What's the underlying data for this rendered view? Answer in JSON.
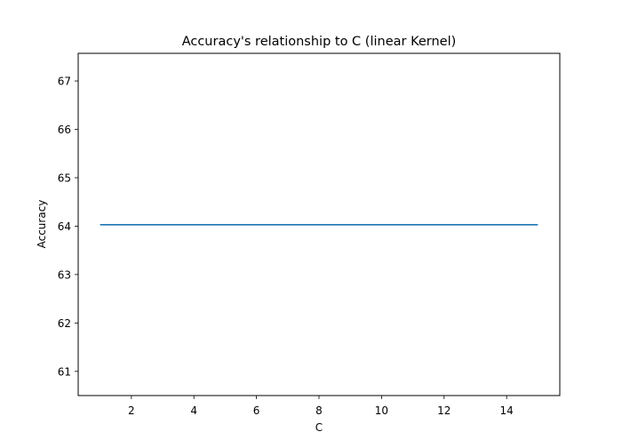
{
  "chart_data": {
    "type": "line",
    "title": "Accuracy's relationship to C (linear Kernel)",
    "xlabel": "C",
    "ylabel": "Accuracy",
    "x": [
      1,
      2,
      3,
      4,
      5,
      6,
      7,
      8,
      9,
      10,
      11,
      12,
      13,
      14,
      15
    ],
    "series": [
      {
        "values": [
          64.03,
          64.03,
          64.03,
          64.03,
          64.03,
          64.03,
          64.03,
          64.03,
          64.03,
          64.03,
          64.03,
          64.03,
          64.03,
          64.03,
          64.03
        ],
        "color": "#1f77b4"
      }
    ],
    "xlim": [
      0.3,
      15.7
    ],
    "ylim": [
      60.5,
      67.57
    ],
    "xticks": [
      2,
      4,
      6,
      8,
      10,
      12,
      14
    ],
    "yticks": [
      61,
      62,
      63,
      64,
      65,
      66,
      67
    ],
    "grid": false,
    "legend": "none"
  }
}
